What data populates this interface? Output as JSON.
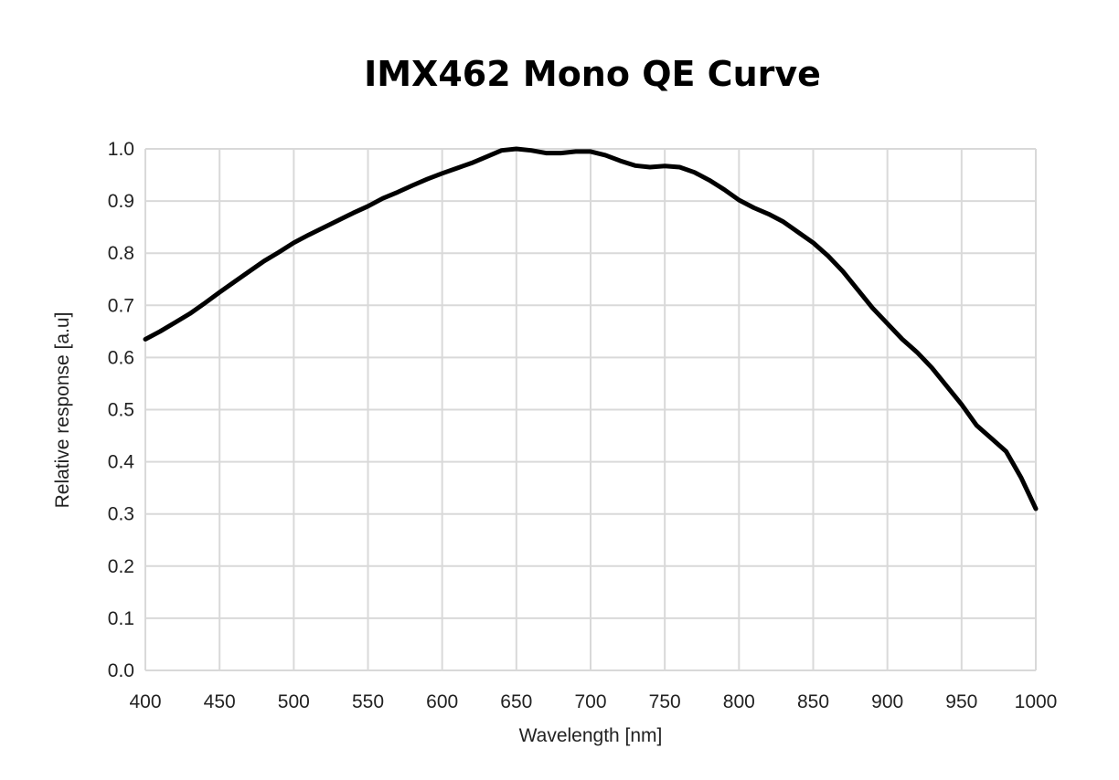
{
  "chart_data": {
    "type": "line",
    "title": "IMX462 Mono QE Curve",
    "xlabel": "Wavelength [nm]",
    "ylabel": "Relative response [a.u]",
    "xlim": [
      400,
      1000
    ],
    "ylim": [
      0,
      1.0
    ],
    "x_ticks": [
      "400",
      "450",
      "500",
      "550",
      "600",
      "650",
      "700",
      "750",
      "800",
      "850",
      "900",
      "950",
      "1000"
    ],
    "y_ticks": [
      "0.0",
      "0.1",
      "0.2",
      "0.3",
      "0.4",
      "0.5",
      "0.6",
      "0.7",
      "0.8",
      "0.9",
      "1.0"
    ],
    "grid": true,
    "line_color": "#000000",
    "grid_color": "#d9d9d9",
    "series": [
      {
        "x": [
          400,
          410,
          420,
          430,
          440,
          450,
          460,
          470,
          480,
          490,
          500,
          510,
          520,
          530,
          540,
          550,
          560,
          570,
          580,
          590,
          600,
          610,
          620,
          630,
          640,
          650,
          660,
          670,
          680,
          690,
          700,
          710,
          720,
          730,
          740,
          750,
          760,
          770,
          780,
          790,
          800,
          810,
          820,
          830,
          840,
          850,
          860,
          870,
          880,
          890,
          900,
          910,
          920,
          930,
          940,
          950,
          960,
          970,
          980,
          990,
          1000
        ],
        "y": [
          0.635,
          0.65,
          0.667,
          0.684,
          0.704,
          0.725,
          0.745,
          0.765,
          0.785,
          0.802,
          0.82,
          0.835,
          0.849,
          0.863,
          0.877,
          0.89,
          0.905,
          0.917,
          0.93,
          0.942,
          0.953,
          0.963,
          0.973,
          0.985,
          0.997,
          1.0,
          0.997,
          0.992,
          0.992,
          0.995,
          0.995,
          0.988,
          0.977,
          0.968,
          0.965,
          0.967,
          0.965,
          0.955,
          0.94,
          0.922,
          0.902,
          0.887,
          0.875,
          0.86,
          0.84,
          0.82,
          0.795,
          0.765,
          0.73,
          0.695,
          0.665,
          0.635,
          0.61,
          0.58,
          0.545,
          0.51,
          0.47,
          0.445,
          0.42,
          0.37,
          0.31
        ]
      }
    ]
  }
}
